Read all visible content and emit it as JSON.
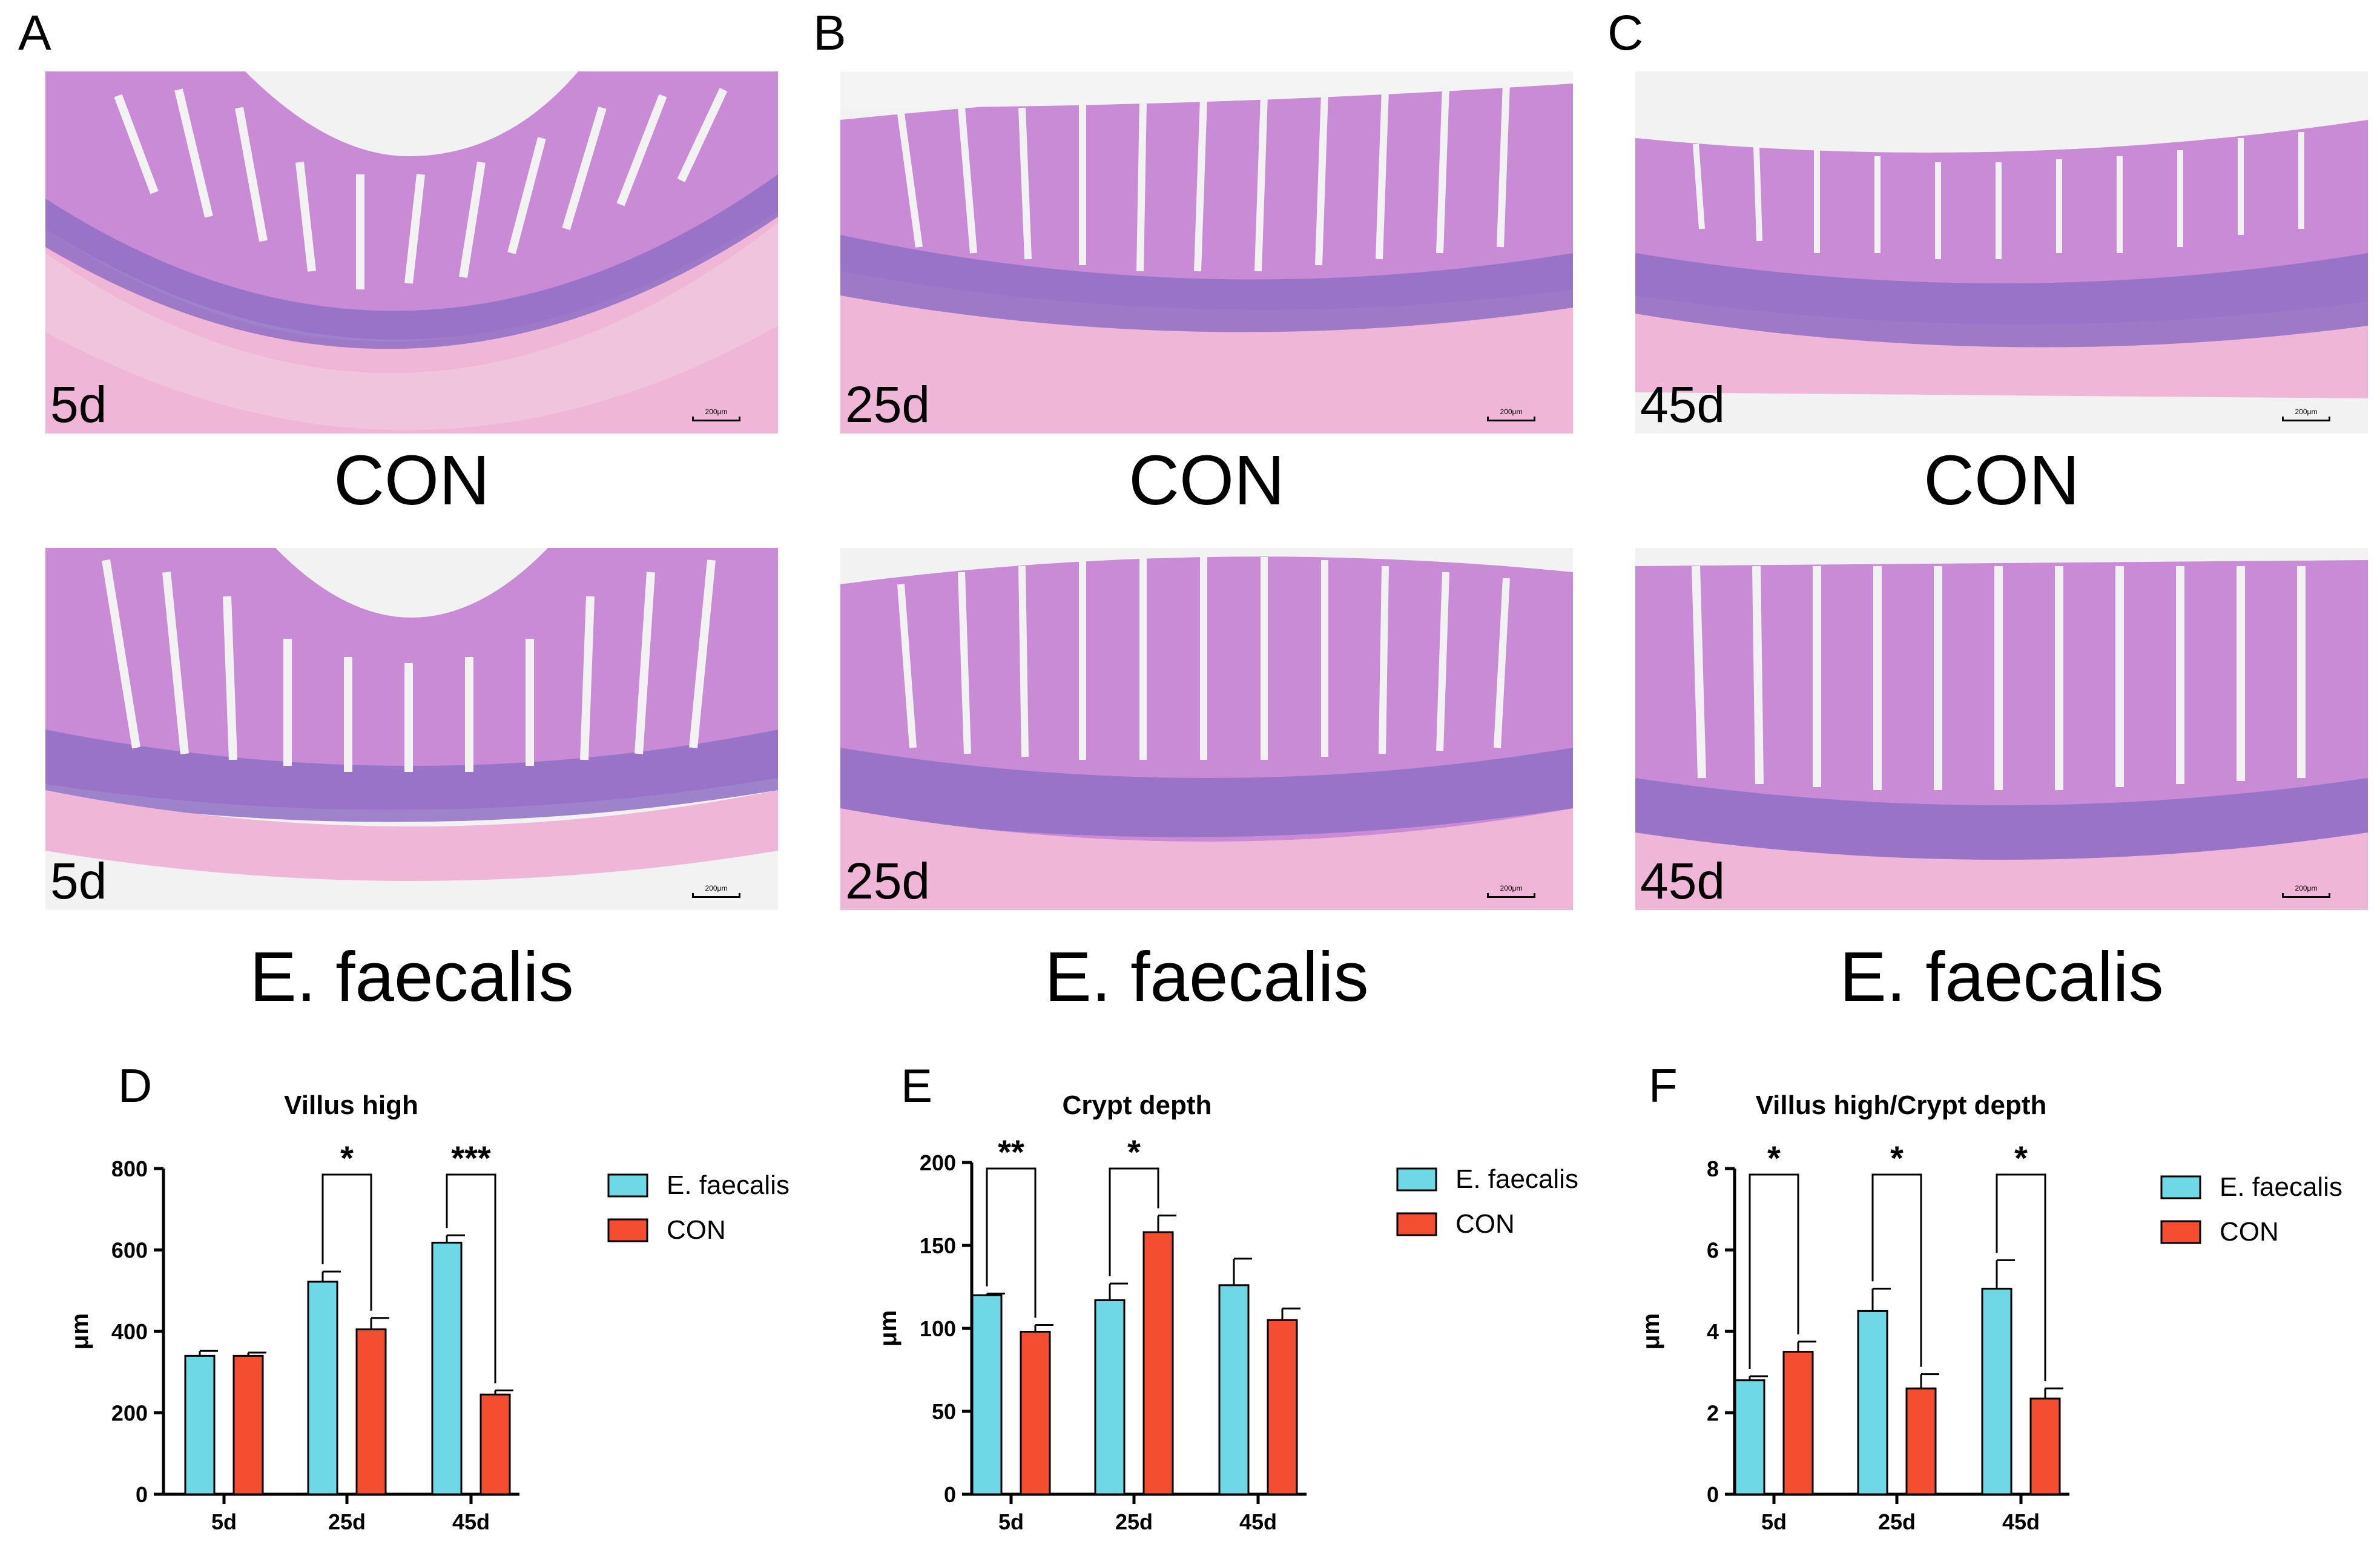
{
  "micrographs": {
    "rows": [
      {
        "group": "CON",
        "panels": [
          {
            "letter": "A",
            "day": "5d",
            "scale": "200μm"
          },
          {
            "letter": "B",
            "day": "25d",
            "scale": "200μm"
          },
          {
            "letter": "C",
            "day": "45d",
            "scale": "200μm"
          }
        ]
      },
      {
        "group": "E. faecalis",
        "panels": [
          {
            "day": "5d",
            "scale": "200μm"
          },
          {
            "day": "25d",
            "scale": "200μm"
          },
          {
            "day": "45d",
            "scale": "200μm"
          }
        ]
      }
    ]
  },
  "chart_data": [
    {
      "type": "bar",
      "panel": "D",
      "title": "Villus high",
      "ylabel": "μm",
      "ylim": [
        0,
        800
      ],
      "yticks": [
        0,
        200,
        400,
        600,
        800
      ],
      "categories": [
        "5d",
        "25d",
        "45d"
      ],
      "series": [
        {
          "name": "E. faecalis",
          "color": "#6ed8e6",
          "values": [
            340,
            522,
            618
          ],
          "errors": [
            12,
            25,
            18
          ]
        },
        {
          "name": "CON",
          "color": "#f44d30",
          "values": [
            340,
            405,
            245
          ],
          "errors": [
            8,
            28,
            10
          ]
        }
      ],
      "significance": [
        {
          "category_index": 1,
          "label": "*"
        },
        {
          "category_index": 2,
          "label": "***"
        }
      ],
      "legend": "right"
    },
    {
      "type": "bar",
      "panel": "E",
      "title": "Crypt depth",
      "ylabel": "μm",
      "ylim": [
        0,
        200
      ],
      "yticks": [
        0,
        50,
        100,
        150,
        200
      ],
      "categories": [
        "5d",
        "25d",
        "45d"
      ],
      "series": [
        {
          "name": "E. faecalis",
          "color": "#6ed8e6",
          "values": [
            120,
            117,
            126
          ],
          "errors": [
            1,
            10,
            16
          ]
        },
        {
          "name": "CON",
          "color": "#f44d30",
          "values": [
            98,
            158,
            105
          ],
          "errors": [
            4,
            10,
            7
          ]
        }
      ],
      "significance": [
        {
          "category_index": 0,
          "label": "**"
        },
        {
          "category_index": 1,
          "label": "*"
        }
      ],
      "legend": "right"
    },
    {
      "type": "bar",
      "panel": "F",
      "title": "Villus high/Crypt depth",
      "ylabel": "μm",
      "ylim": [
        0,
        8
      ],
      "yticks": [
        0,
        2,
        4,
        6,
        8
      ],
      "categories": [
        "5d",
        "25d",
        "45d"
      ],
      "series": [
        {
          "name": "E. faecalis",
          "color": "#6ed8e6",
          "values": [
            2.8,
            4.5,
            5.05
          ],
          "errors": [
            0.1,
            0.55,
            0.7
          ]
        },
        {
          "name": "CON",
          "color": "#f44d30",
          "values": [
            3.5,
            2.6,
            2.35
          ],
          "errors": [
            0.25,
            0.35,
            0.25
          ]
        }
      ],
      "significance": [
        {
          "category_index": 0,
          "label": "*"
        },
        {
          "category_index": 1,
          "label": "*"
        },
        {
          "category_index": 2,
          "label": "*"
        }
      ],
      "legend": "right"
    }
  ]
}
